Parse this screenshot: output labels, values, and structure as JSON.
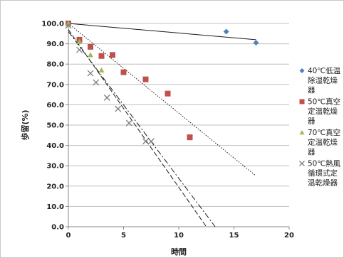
{
  "chart_data": {
    "type": "scatter",
    "xlabel": "時間",
    "ylabel": "歩留(%)",
    "xlim": [
      0,
      20
    ],
    "ylim": [
      0,
      100
    ],
    "x_ticks": [
      "0",
      "5",
      "10",
      "15",
      "20"
    ],
    "y_ticks": [
      "0.0",
      "10.0",
      "20.0",
      "30.0",
      "40.0",
      "50.0",
      "60.0",
      "70.0",
      "80.0",
      "90.0",
      "100.0"
    ],
    "legend_position": "right",
    "series": [
      {
        "name": "40℃低温除湿乾燥器",
        "legend_lines": [
          "40℃低温",
          "除湿乾燥",
          "器"
        ],
        "marker": "diamond",
        "color": "#4f81bd",
        "x": [
          0,
          14.3,
          17
        ],
        "y": [
          100,
          96,
          90.5
        ],
        "trend": {
          "x0": 0,
          "y0": 100,
          "x1": 17,
          "y1": 92,
          "style": "solid"
        }
      },
      {
        "name": "50℃真空定温乾燥器",
        "legend_lines": [
          "50℃真空",
          "定温乾燥",
          "器"
        ],
        "marker": "square",
        "color": "#c0504d",
        "x": [
          0,
          1,
          2,
          3,
          4,
          5,
          7,
          9,
          11
        ],
        "y": [
          100,
          92,
          88.5,
          84,
          84.5,
          76,
          72.5,
          65.5,
          44
        ],
        "trend": {
          "x0": 0,
          "y0": 100,
          "x1": 17,
          "y1": 25,
          "style": "dotted"
        }
      },
      {
        "name": "70℃真空定温乾燥器",
        "legend_lines": [
          "70℃真空",
          "定温乾燥",
          "器"
        ],
        "marker": "triangle",
        "color": "#9bbb59",
        "x": [
          0,
          1,
          2,
          3
        ],
        "y": [
          100,
          91,
          84.5,
          77
        ],
        "trend": {
          "x0": 0,
          "y0": 97,
          "x1": 12.5,
          "y1": 0,
          "style": "dashed"
        }
      },
      {
        "name": "50℃熱風循環式定温乾燥器",
        "legend_lines": [
          "50℃熱風",
          "循環式定",
          "温乾燥器"
        ],
        "marker": "x",
        "color": "#7f7f7f",
        "x": [
          0,
          1,
          2,
          2.5,
          3.5,
          4.5,
          5.5,
          7,
          7.5
        ],
        "y": [
          99,
          87,
          75.5,
          71,
          63.5,
          58,
          51,
          42,
          42
        ],
        "trend": {
          "x0": 0,
          "y0": 96,
          "x1": 13.3,
          "y1": 0,
          "style": "dashdot"
        }
      }
    ]
  }
}
